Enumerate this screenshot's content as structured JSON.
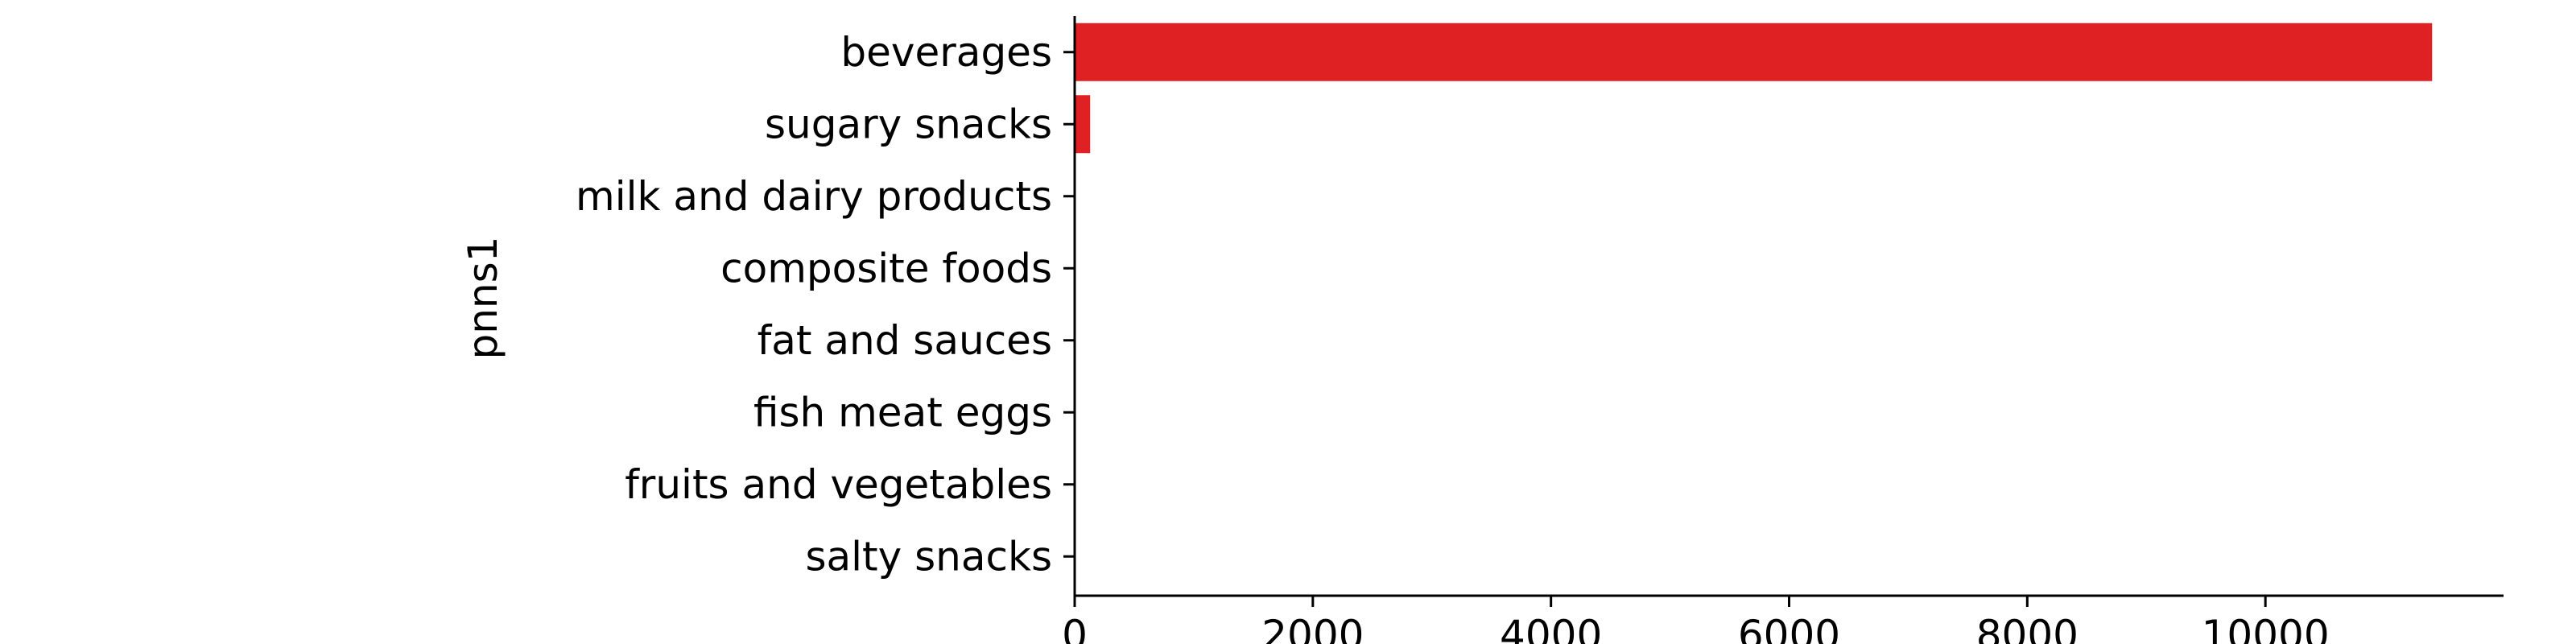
{
  "chart_data": {
    "type": "bar",
    "orientation": "horizontal",
    "categories": [
      "beverages",
      "sugary snacks",
      "milk and dairy products",
      "composite foods",
      "fat and sauces",
      "fish meat eggs",
      "fruits and vegetables",
      "salty snacks"
    ],
    "values": [
      11400,
      130,
      0,
      0,
      0,
      0,
      0,
      0
    ],
    "title": "",
    "xlabel": "",
    "ylabel": "pnns1",
    "xlim": [
      0,
      12000
    ],
    "xticks": [
      "0",
      "2000",
      "4000",
      "6000",
      "8000",
      "10000"
    ],
    "bar_color": "#e02124",
    "grid": false,
    "legend": "none"
  }
}
